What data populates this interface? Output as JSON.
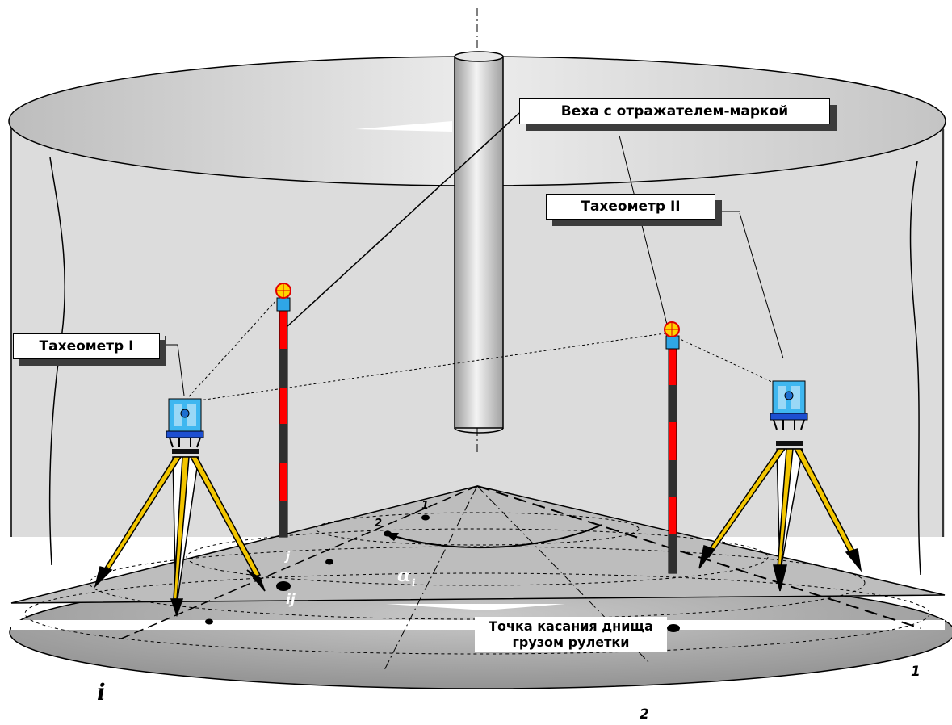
{
  "labels": {
    "reflector_pole": "Веха с отражателем-маркой",
    "tacheometer_1": "Тахеометр I",
    "tacheometer_2": "Тахеометр II",
    "touch_point": "Точка касания днища\nгрузом рулетки"
  },
  "markers": {
    "row_i": "i",
    "col_j": "j",
    "point_ij": "ij",
    "alpha": "α",
    "alpha_sub": "i",
    "radius_1_inner": "1",
    "radius_2_inner": "2",
    "radius_1_outer": "1",
    "radius_2_outer": "2"
  },
  "colors": {
    "wall": "#d9d9d9",
    "floor": "#9a9a9a",
    "instrument": "#3fb7f0",
    "tripod": "#f2c500",
    "pole_red": "#ff0000",
    "pole_dark": "#2f2f2f",
    "reflector": "#ffd400"
  }
}
